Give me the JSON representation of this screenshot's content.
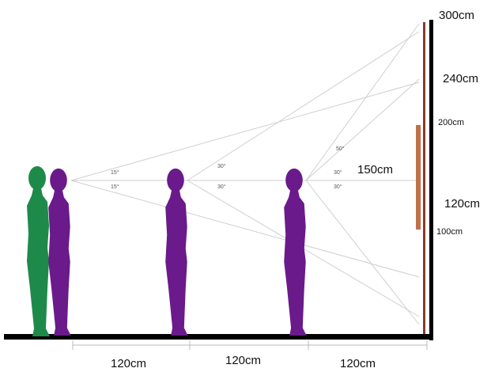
{
  "wall_labels": [
    "300cm",
    "240cm",
    "200cm",
    "150cm",
    "120cm",
    "100cm"
  ],
  "angle_labels": [
    "15°",
    "15°",
    "30°",
    "30°",
    "50°",
    "30°",
    "30°"
  ],
  "distance_labels": [
    "120cm",
    "120cm",
    "120cm"
  ]
}
